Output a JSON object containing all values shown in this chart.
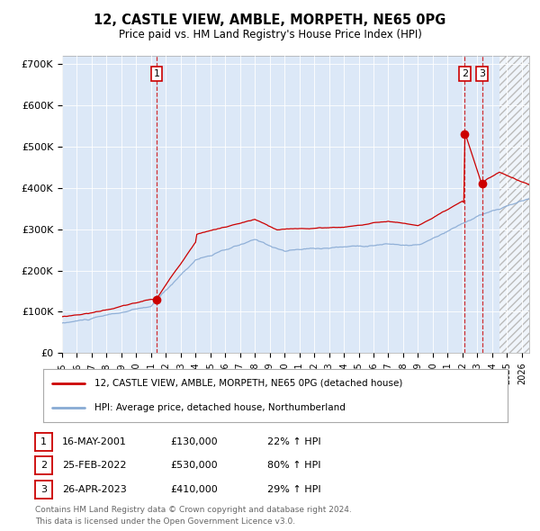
{
  "title_line1": "12, CASTLE VIEW, AMBLE, MORPETH, NE65 0PG",
  "title_line2": "Price paid vs. HM Land Registry's House Price Index (HPI)",
  "xlim_start": 1995.0,
  "xlim_end": 2026.5,
  "ylim_min": 0,
  "ylim_max": 720000,
  "background_color": "#dce8f7",
  "hatch_region_start": 2024.5,
  "hatch_region_end": 2026.5,
  "sale_color": "#cc0000",
  "hpi_color": "#88aad4",
  "sale_label": "12, CASTLE VIEW, AMBLE, MORPETH, NE65 0PG (detached house)",
  "hpi_label": "HPI: Average price, detached house, Northumberland",
  "transactions": [
    {
      "num": 1,
      "date_label": "16-MAY-2001",
      "date_x": 2001.37,
      "price": 130000,
      "price_label": "£130,000",
      "hpi_pct": "22%",
      "direction": "↑"
    },
    {
      "num": 2,
      "date_label": "25-FEB-2022",
      "date_x": 2022.15,
      "price": 530000,
      "price_label": "£530,000",
      "hpi_pct": "80%",
      "direction": "↑"
    },
    {
      "num": 3,
      "date_label": "26-APR-2023",
      "date_x": 2023.32,
      "price": 410000,
      "price_label": "£410,000",
      "hpi_pct": "29%",
      "direction": "↑"
    }
  ],
  "footer_line1": "Contains HM Land Registry data © Crown copyright and database right 2024.",
  "footer_line2": "This data is licensed under the Open Government Licence v3.0.",
  "yticks": [
    0,
    100000,
    200000,
    300000,
    400000,
    500000,
    600000,
    700000
  ],
  "ytick_labels": [
    "£0",
    "£100K",
    "£200K",
    "£300K",
    "£400K",
    "£500K",
    "£600K",
    "£700K"
  ]
}
